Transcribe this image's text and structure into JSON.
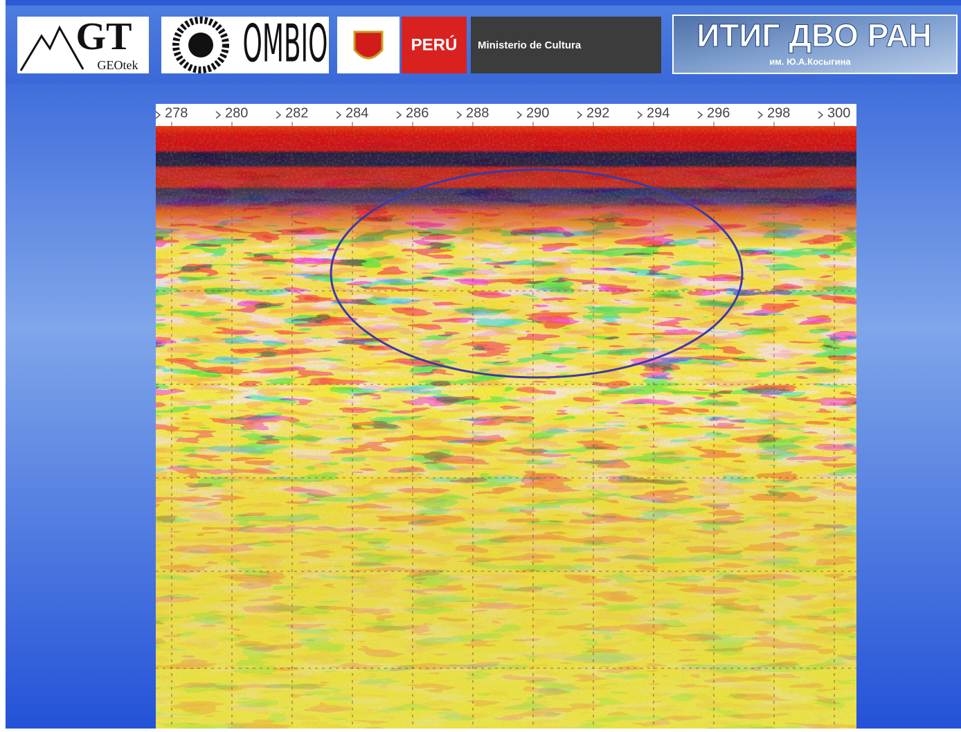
{
  "header": {
    "logos": [
      {
        "title": "GT",
        "subtitle": "GEOtek"
      },
      {
        "title": "OMBIO"
      },
      {
        "title": "PERÚ",
        "subtitle": "Ministerio de Cultura"
      },
      {
        "title": "ИТИГ ДВО РАН",
        "subtitle": "им. Ю.А.Косыгина"
      }
    ]
  },
  "radargram": {
    "xticks": [
      278,
      280,
      282,
      284,
      286,
      288,
      290,
      292,
      294,
      296,
      298,
      300
    ]
  }
}
